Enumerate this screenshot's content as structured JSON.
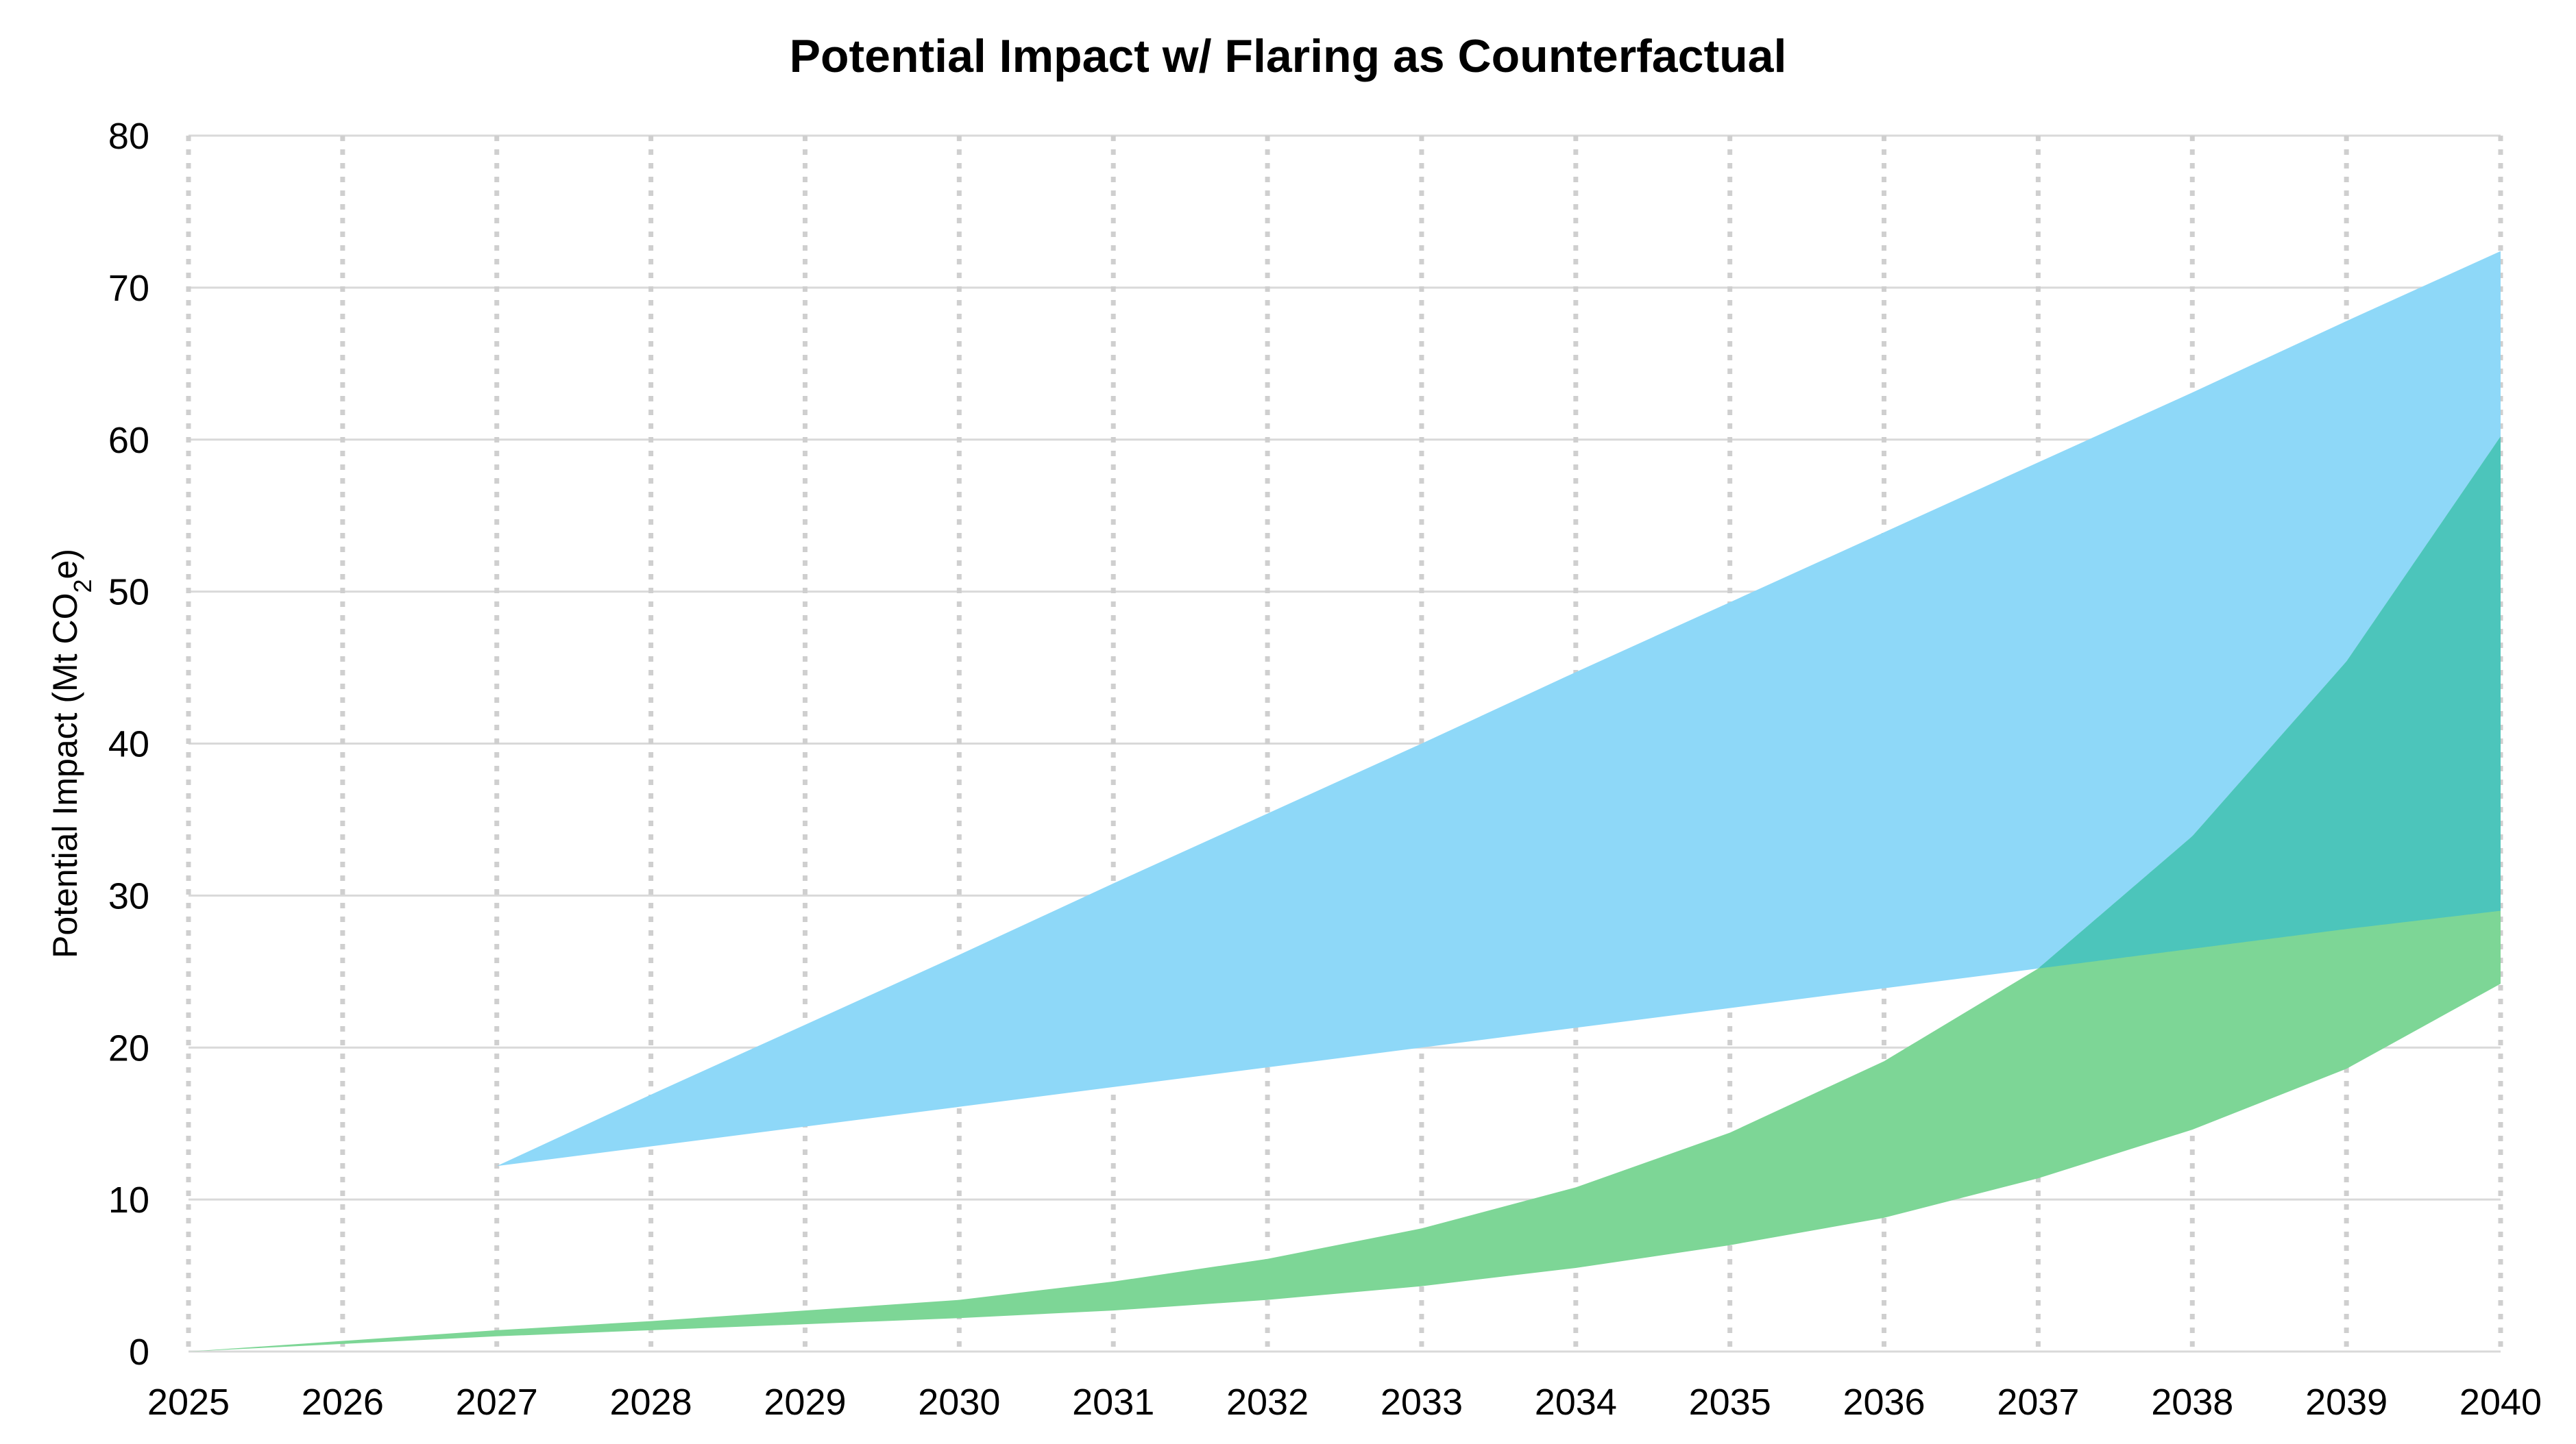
{
  "chart_data": {
    "type": "area",
    "title": "Potential Impact w/ Flaring as Counterfactual",
    "xlabel": "",
    "ylabel": {
      "prefix": "Potential Impact (Mt CO",
      "subscript": "2",
      "suffix": "e)"
    },
    "xlim": [
      2025,
      2040
    ],
    "ylim": [
      0,
      80
    ],
    "x_ticks": [
      "2025",
      "2026",
      "2027",
      "2028",
      "2029",
      "2030",
      "2031",
      "2032",
      "2033",
      "2034",
      "2035",
      "2036",
      "2037",
      "2038",
      "2039",
      "2040"
    ],
    "y_ticks": [
      "0",
      "10",
      "20",
      "30",
      "40",
      "50",
      "60",
      "70",
      "80"
    ],
    "grid": {
      "horizontal": "solid",
      "vertical": "dotted"
    },
    "colors": {
      "blue_band": "#8ed8f8",
      "green_band": "#7dd696",
      "overlap": "#4cc5bb",
      "grid_h": "#d9d9d9",
      "grid_v": "#cfcfcf",
      "text": "#000000"
    },
    "series": [
      {
        "name": "blue-range",
        "color": "#8ed8f8",
        "x": [
          2027,
          2028,
          2029,
          2030,
          2031,
          2032,
          2033,
          2034,
          2035,
          2036,
          2037,
          2038,
          2039,
          2040
        ],
        "lower": [
          12.2,
          13.5,
          14.8,
          16.1,
          17.4,
          18.7,
          20.0,
          21.3,
          22.6,
          23.9,
          25.2,
          26.5,
          27.8,
          29.0
        ],
        "upper": [
          12.2,
          16.9,
          21.5,
          26.1,
          30.8,
          35.4,
          40.0,
          44.7,
          49.3,
          53.9,
          58.5,
          63.1,
          67.8,
          72.4
        ]
      },
      {
        "name": "green-range",
        "color": "#7dd696",
        "x": [
          2025,
          2026,
          2027,
          2028,
          2029,
          2030,
          2031,
          2032,
          2033,
          2034,
          2035,
          2036,
          2037,
          2038,
          2039,
          2040
        ],
        "lower": [
          0,
          0.5,
          1.0,
          1.4,
          1.8,
          2.2,
          2.7,
          3.4,
          4.3,
          5.5,
          7.0,
          8.8,
          11.4,
          14.6,
          18.6,
          24.2
        ],
        "upper": [
          0,
          0.7,
          1.4,
          2.0,
          2.7,
          3.4,
          4.6,
          6.1,
          8.1,
          10.8,
          14.4,
          19.1,
          25.2,
          33.9,
          45.4,
          60.2
        ]
      }
    ]
  }
}
